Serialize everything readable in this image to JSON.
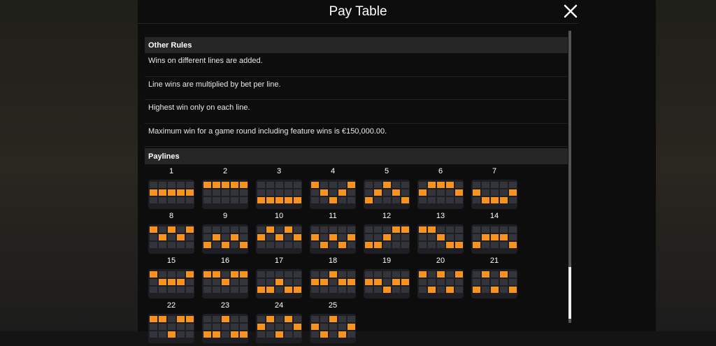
{
  "header": {
    "title": "Pay Table"
  },
  "other_rules": {
    "heading": "Other Rules",
    "rules": [
      "Wins on different lines are added.",
      "Line wins are multiplied by bet per line.",
      "Highest win only on each line.",
      "Maximum win for a game round including feature wins is €150,000.00."
    ]
  },
  "paylines": {
    "heading": "Paylines",
    "highlight_color": "#f7931e",
    "lines": [
      {
        "label": "1",
        "rows": [
          1,
          1,
          1,
          1,
          1
        ]
      },
      {
        "label": "2",
        "rows": [
          0,
          0,
          0,
          0,
          0
        ]
      },
      {
        "label": "3",
        "rows": [
          2,
          2,
          2,
          2,
          2
        ]
      },
      {
        "label": "4",
        "rows": [
          0,
          1,
          2,
          1,
          0
        ]
      },
      {
        "label": "5",
        "rows": [
          2,
          1,
          0,
          1,
          2
        ]
      },
      {
        "label": "6",
        "rows": [
          1,
          0,
          0,
          0,
          1
        ]
      },
      {
        "label": "7",
        "rows": [
          1,
          2,
          2,
          2,
          1
        ]
      },
      {
        "label": "8",
        "rows": [
          0,
          1,
          0,
          1,
          0
        ]
      },
      {
        "label": "9",
        "rows": [
          2,
          1,
          2,
          1,
          2
        ]
      },
      {
        "label": "10",
        "rows": [
          1,
          0,
          1,
          0,
          1
        ]
      },
      {
        "label": "11",
        "rows": [
          1,
          2,
          1,
          2,
          1
        ]
      },
      {
        "label": "12",
        "rows": [
          2,
          2,
          1,
          0,
          0
        ]
      },
      {
        "label": "13",
        "rows": [
          0,
          0,
          1,
          2,
          2
        ]
      },
      {
        "label": "14",
        "rows": [
          2,
          1,
          1,
          1,
          2
        ]
      },
      {
        "label": "15",
        "rows": [
          0,
          1,
          1,
          1,
          0
        ]
      },
      {
        "label": "16",
        "rows": [
          0,
          0,
          1,
          0,
          0
        ]
      },
      {
        "label": "17",
        "rows": [
          2,
          2,
          1,
          2,
          2
        ]
      },
      {
        "label": "18",
        "rows": [
          1,
          1,
          0,
          1,
          1
        ]
      },
      {
        "label": "19",
        "rows": [
          1,
          1,
          2,
          1,
          1
        ]
      },
      {
        "label": "20",
        "rows": [
          0,
          2,
          0,
          2,
          0
        ]
      },
      {
        "label": "21",
        "rows": [
          2,
          0,
          2,
          0,
          2
        ]
      },
      {
        "label": "22",
        "rows": [
          0,
          0,
          2,
          0,
          0
        ]
      },
      {
        "label": "23",
        "rows": [
          2,
          2,
          0,
          2,
          2
        ]
      },
      {
        "label": "24",
        "rows": [
          1,
          0,
          2,
          0,
          1
        ]
      },
      {
        "label": "25",
        "rows": [
          1,
          2,
          0,
          2,
          1
        ]
      }
    ]
  },
  "icons": {
    "close": "close-icon"
  }
}
